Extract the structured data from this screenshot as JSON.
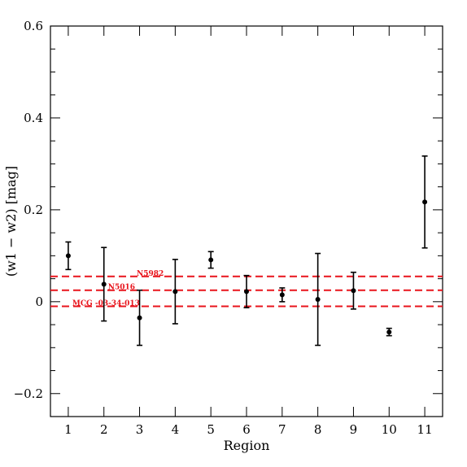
{
  "chart_data": {
    "type": "scatter",
    "title": "",
    "xlabel": "Region",
    "ylabel": "(w1 − w2) [mag]",
    "xlim": [
      0.5,
      11.5
    ],
    "ylim": [
      -0.25,
      0.6
    ],
    "x_ticks": [
      "1",
      "2",
      "3",
      "4",
      "5",
      "6",
      "7",
      "8",
      "9",
      "10",
      "11"
    ],
    "y_ticks": [
      {
        "value": -0.2,
        "label": "−0.2"
      },
      {
        "value": 0,
        "label": "0"
      },
      {
        "value": 0.2,
        "label": "0.2"
      },
      {
        "value": 0.4,
        "label": "0.4"
      },
      {
        "value": 0.6,
        "label": "0.6"
      }
    ],
    "grid": false,
    "series": [
      {
        "x": [
          1,
          2,
          3,
          4,
          5,
          6,
          7,
          8,
          9,
          10,
          11
        ],
        "y": [
          0.1,
          0.038,
          -0.035,
          0.022,
          0.091,
          0.022,
          0.015,
          0.005,
          0.024,
          -0.066,
          0.217
        ],
        "err": [
          0.03,
          0.08,
          0.06,
          0.07,
          0.018,
          0.035,
          0.015,
          0.1,
          0.04,
          0.008,
          0.1
        ],
        "color": "#000000"
      }
    ],
    "reference_lines": [
      {
        "label": "N5982",
        "y": 0.055,
        "color": "#e8141c"
      },
      {
        "label": "N5016",
        "y": 0.025,
        "color": "#e8141c"
      },
      {
        "label": "MCG -03-34-013",
        "y": -0.01,
        "color": "#e8141c"
      }
    ]
  }
}
